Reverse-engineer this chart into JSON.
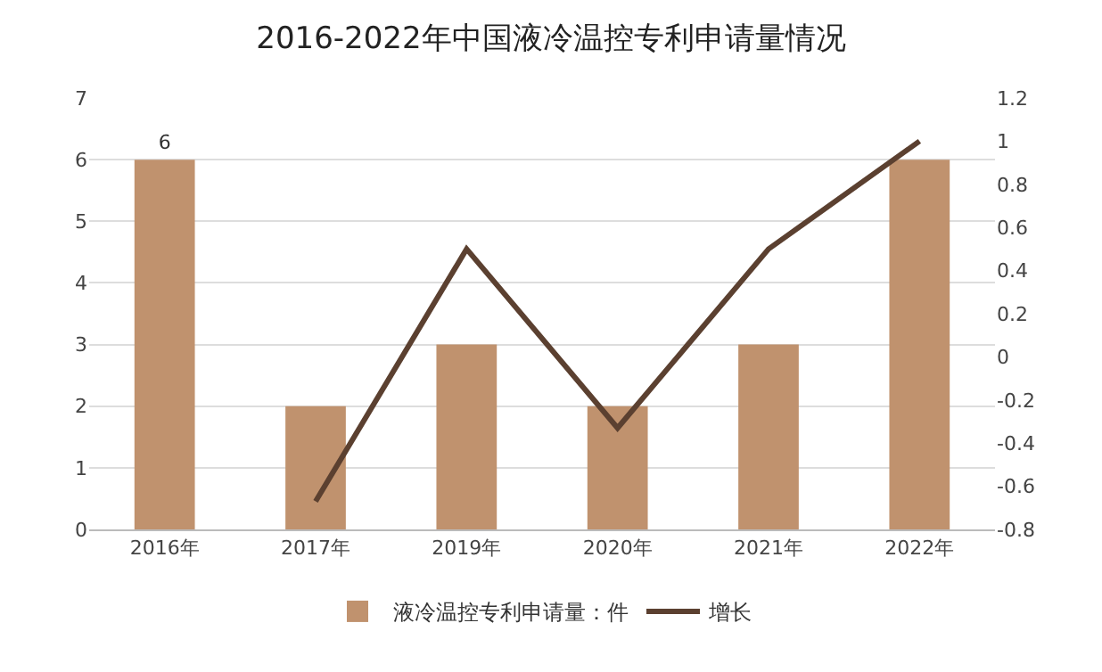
{
  "chart_data": {
    "type": "bar",
    "title": "2016-2022年中国液冷温控专利申请量情况",
    "categories": [
      "2016年",
      "2017年",
      "2019年",
      "2020年",
      "2021年",
      "2022年"
    ],
    "series": [
      {
        "name": "液冷温控专利申请量：件",
        "color": "#c0926e",
        "values": [
          6,
          2,
          3,
          2,
          3,
          6
        ],
        "value_labels": [
          "6",
          null,
          null,
          null,
          null,
          null
        ]
      },
      {
        "name": "增长",
        "type": "line",
        "axis": "y2",
        "color": "#5b4030",
        "values": [
          null,
          -0.67,
          0.5,
          -0.33,
          0.5,
          1.0
        ]
      }
    ],
    "ylim": [
      0,
      7
    ],
    "yticks": [
      0,
      1,
      2,
      3,
      4,
      5,
      6,
      7
    ],
    "y2lim": [
      -0.8,
      1.2
    ],
    "y2ticks": [
      -0.8,
      -0.6,
      -0.4,
      -0.2,
      0,
      0.2,
      0.4,
      0.6,
      0.8,
      1,
      1.2
    ],
    "grid": "y",
    "legend": "bottom",
    "marker": "none",
    "line_style": "solid"
  }
}
